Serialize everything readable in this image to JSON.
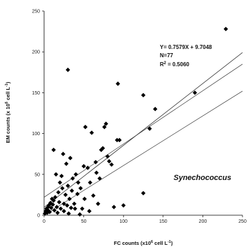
{
  "chart_data": {
    "type": "scatter",
    "xlabel": "FC counts (x10<sup>6</sup> cell L<sup>-1</sup>)",
    "xlabel_text": [
      "FC counts (x10",
      "6",
      " cell L",
      "-1",
      ")"
    ],
    "ylabel_text": [
      "EM counts (x 10",
      "6",
      " cell L",
      "-1",
      ")"
    ],
    "xlim": [
      0,
      250
    ],
    "ylim": [
      0,
      250
    ],
    "xticks": [
      0,
      50,
      100,
      150,
      200,
      250
    ],
    "yticks": [
      0,
      50,
      100,
      150,
      200,
      250
    ],
    "grid": false,
    "annotation": {
      "equation": "Y= 0.7579X + 9.7048",
      "n": "N=77",
      "r2_prefix": "R",
      "r2_sup": "2",
      "r2_suffix": " = 0.5060"
    },
    "series_label": "Synechococcus",
    "regression": {
      "slope": 0.7579,
      "intercept": 9.7048
    },
    "confidence_upper": [
      [
        0,
        22
      ],
      [
        250,
        185
      ]
    ],
    "confidence_lower": [
      [
        0,
        0
      ],
      [
        250,
        152
      ]
    ],
    "points": [
      [
        1,
        2
      ],
      [
        2,
        5
      ],
      [
        3,
        8
      ],
      [
        4,
        3
      ],
      [
        5,
        10
      ],
      [
        5,
        6
      ],
      [
        6,
        12
      ],
      [
        7,
        4
      ],
      [
        8,
        15
      ],
      [
        9,
        9
      ],
      [
        10,
        20
      ],
      [
        11,
        13
      ],
      [
        12,
        80
      ],
      [
        12,
        18
      ],
      [
        13,
        6
      ],
      [
        14,
        22
      ],
      [
        15,
        50
      ],
      [
        16,
        10
      ],
      [
        17,
        3
      ],
      [
        18,
        28
      ],
      [
        19,
        16
      ],
      [
        20,
        40
      ],
      [
        21,
        8
      ],
      [
        22,
        48
      ],
      [
        23,
        33
      ],
      [
        24,
        75
      ],
      [
        25,
        5
      ],
      [
        25,
        14
      ],
      [
        27,
        25
      ],
      [
        28,
        63
      ],
      [
        29,
        12
      ],
      [
        30,
        178
      ],
      [
        30,
        36
      ],
      [
        31,
        2
      ],
      [
        32,
        20
      ],
      [
        33,
        70
      ],
      [
        34,
        9
      ],
      [
        35,
        30
      ],
      [
        36,
        45
      ],
      [
        38,
        14
      ],
      [
        39,
        8
      ],
      [
        40,
        50
      ],
      [
        42,
        26
      ],
      [
        43,
        40
      ],
      [
        45,
        1
      ],
      [
        46,
        33
      ],
      [
        48,
        8
      ],
      [
        50,
        60
      ],
      [
        51,
        20
      ],
      [
        52,
        108
      ],
      [
        55,
        58
      ],
      [
        57,
        5
      ],
      [
        58,
        40
      ],
      [
        60,
        101
      ],
      [
        62,
        24
      ],
      [
        65,
        65
      ],
      [
        66,
        52
      ],
      [
        68,
        14
      ],
      [
        70,
        45
      ],
      [
        72,
        80
      ],
      [
        74,
        82
      ],
      [
        76,
        108
      ],
      [
        78,
        112
      ],
      [
        80,
        72
      ],
      [
        82,
        66
      ],
      [
        85,
        62
      ],
      [
        88,
        10
      ],
      [
        92,
        92
      ],
      [
        93,
        161
      ],
      [
        95,
        92
      ],
      [
        100,
        12
      ],
      [
        125,
        147
      ],
      [
        125,
        27
      ],
      [
        133,
        106
      ],
      [
        140,
        130
      ],
      [
        190,
        150
      ],
      [
        229,
        228
      ]
    ]
  }
}
